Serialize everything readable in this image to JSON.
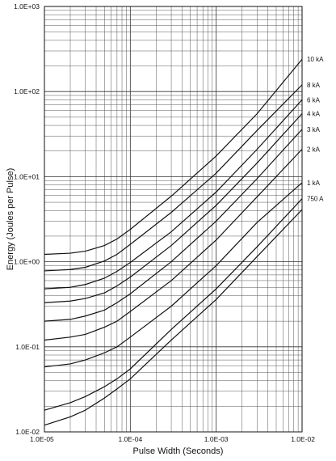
{
  "chart_data": {
    "type": "line",
    "title": "",
    "xlabel": "Pulse Width (Seconds)",
    "ylabel": "Energy (Joules per Pulse)",
    "x_scale": "log",
    "y_scale": "log",
    "xlim": [
      1e-05,
      0.01
    ],
    "ylim": [
      0.01,
      1000
    ],
    "x_ticks": [
      {
        "value": 1e-05,
        "label": "1.0E-05"
      },
      {
        "value": 0.0001,
        "label": "1.0E-04"
      },
      {
        "value": 0.001,
        "label": "1.0E-03"
      },
      {
        "value": 0.01,
        "label": "1.0E-02"
      }
    ],
    "y_ticks": [
      {
        "value": 1000,
        "label": "1.0E+03"
      },
      {
        "value": 100,
        "label": "1.0E+02"
      },
      {
        "value": 10,
        "label": "1.0E+01"
      },
      {
        "value": 1,
        "label": "1.0E+00"
      },
      {
        "value": 0.1,
        "label": "1.0E-01"
      },
      {
        "value": 0.01,
        "label": "1.0E-02"
      }
    ],
    "grid": true,
    "legend": "inline-right",
    "series": [
      {
        "name": "10 kA",
        "x": [
          1e-05,
          2e-05,
          3e-05,
          5e-05,
          7e-05,
          0.0001,
          0.0003,
          0.001,
          0.003,
          0.01
        ],
        "y": [
          1.22,
          1.26,
          1.33,
          1.55,
          1.85,
          2.4,
          5.9,
          17.5,
          55,
          240
        ]
      },
      {
        "name": "8 kA",
        "x": [
          1e-05,
          2e-05,
          3e-05,
          5e-05,
          7e-05,
          0.0001,
          0.0003,
          0.001,
          0.003,
          0.01
        ],
        "y": [
          0.78,
          0.81,
          0.86,
          1.02,
          1.22,
          1.6,
          3.8,
          11,
          35,
          120
        ]
      },
      {
        "name": "6 kA",
        "x": [
          1e-05,
          2e-05,
          3e-05,
          5e-05,
          7e-05,
          0.0001,
          0.0003,
          0.001,
          0.003,
          0.01
        ],
        "y": [
          0.48,
          0.5,
          0.54,
          0.64,
          0.77,
          0.98,
          2.25,
          6.6,
          21,
          80
        ]
      },
      {
        "name": "4 kA",
        "x": [
          1e-05,
          2e-05,
          3e-05,
          5e-05,
          7e-05,
          0.0001,
          0.0003,
          0.001,
          0.003,
          0.01
        ],
        "y": [
          0.33,
          0.345,
          0.37,
          0.43,
          0.52,
          0.66,
          1.55,
          4.6,
          14.5,
          55
        ]
      },
      {
        "name": "3 kA",
        "x": [
          1e-05,
          2e-05,
          3e-05,
          5e-05,
          7e-05,
          0.0001,
          0.0003,
          0.001,
          0.003,
          0.01
        ],
        "y": [
          0.2,
          0.21,
          0.23,
          0.27,
          0.33,
          0.42,
          1.0,
          3.0,
          9.5,
          36
        ]
      },
      {
        "name": "2 kA",
        "x": [
          1e-05,
          2e-05,
          3e-05,
          5e-05,
          7e-05,
          0.0001,
          0.0003,
          0.001,
          0.003,
          0.01
        ],
        "y": [
          0.12,
          0.13,
          0.14,
          0.17,
          0.2,
          0.26,
          0.6,
          1.8,
          5.8,
          21
        ]
      },
      {
        "name": "1 kA",
        "x": [
          1e-05,
          2e-05,
          3e-05,
          5e-05,
          7e-05,
          0.0001,
          0.0003,
          0.001,
          0.003,
          0.01
        ],
        "y": [
          0.058,
          0.063,
          0.07,
          0.085,
          0.1,
          0.13,
          0.3,
          0.9,
          2.9,
          8.5
        ]
      },
      {
        "name": "750 A",
        "x": [
          1e-05,
          2e-05,
          3e-05,
          5e-05,
          7e-05,
          0.0001,
          0.0003,
          0.001,
          0.003,
          0.01
        ],
        "y": [
          0.018,
          0.022,
          0.026,
          0.034,
          0.042,
          0.055,
          0.16,
          0.48,
          1.5,
          5.5
        ]
      },
      {
        "name": "",
        "x": [
          1e-05,
          2e-05,
          3e-05,
          5e-05,
          7e-05,
          0.0001,
          0.0003,
          0.001,
          0.003,
          0.01
        ],
        "y": [
          0.012,
          0.015,
          0.018,
          0.025,
          0.032,
          0.042,
          0.12,
          0.36,
          1.15,
          4.1
        ]
      }
    ]
  }
}
